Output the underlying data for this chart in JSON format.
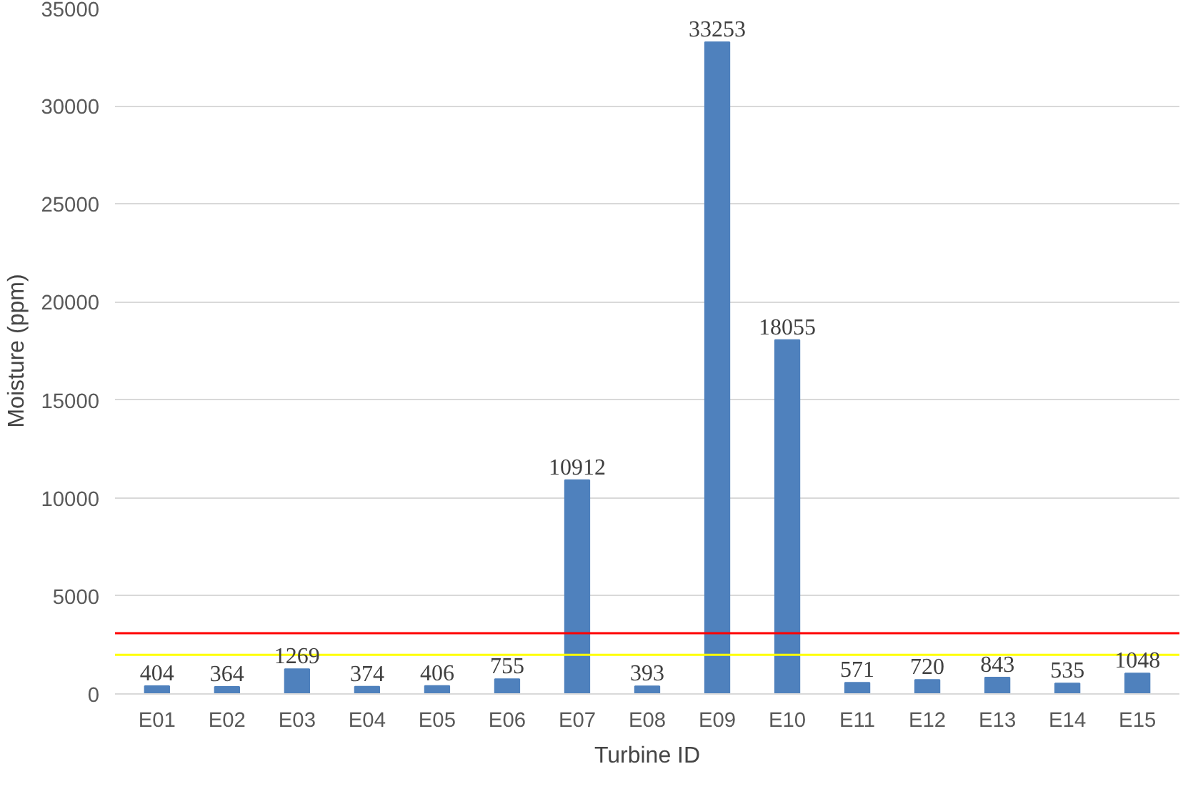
{
  "chart_data": {
    "type": "bar",
    "xlabel": "Turbine ID",
    "ylabel": "Moisture (ppm)",
    "categories": [
      "E01",
      "E02",
      "E03",
      "E04",
      "E05",
      "E06",
      "E07",
      "E08",
      "E09",
      "E10",
      "E11",
      "E12",
      "E13",
      "E14",
      "E15"
    ],
    "values": [
      404,
      364,
      1269,
      374,
      406,
      755,
      10912,
      393,
      33253,
      18055,
      571,
      720,
      843,
      535,
      1048
    ],
    "color": "#4f81bd",
    "data_labels": true,
    "grid": "y",
    "ylim": [
      0,
      35000
    ],
    "yticks": [
      0,
      5000,
      10000,
      15000,
      20000,
      25000,
      30000,
      35000
    ],
    "ref_lines": [
      {
        "axis": "y",
        "value": 3100,
        "color": "#ff0000"
      },
      {
        "axis": "y",
        "value": 2000,
        "color": "#ffff00"
      }
    ]
  }
}
